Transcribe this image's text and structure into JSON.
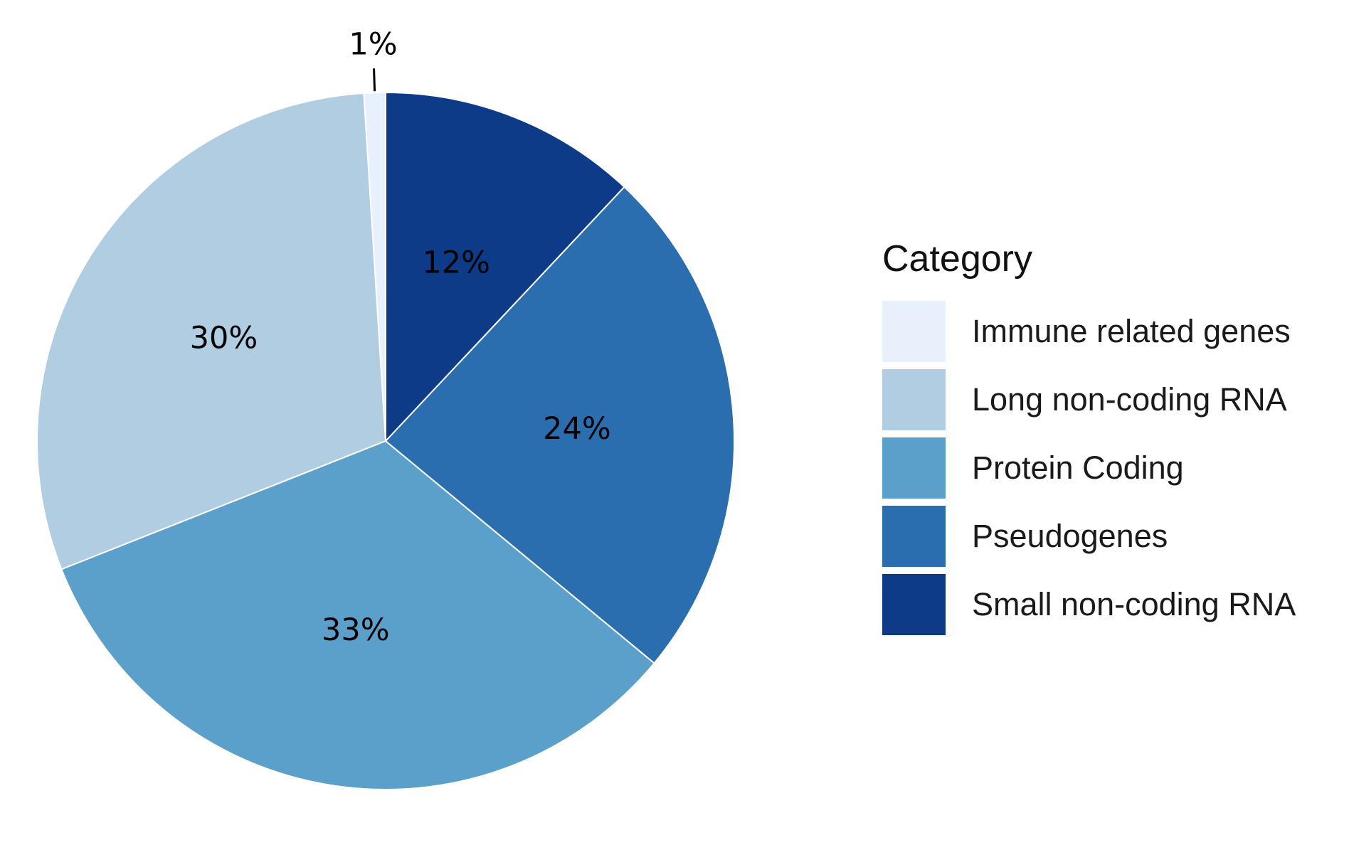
{
  "chart_data": {
    "type": "pie",
    "title": "",
    "categories": [
      "Immune related genes",
      "Long non-coding RNA",
      "Protein Coding",
      "Pseudogenes",
      "Small non-coding RNA"
    ],
    "values": [
      1,
      30,
      33,
      24,
      12
    ],
    "labels": [
      "1%",
      "30%",
      "33%",
      "24%",
      "12%"
    ],
    "colors": [
      "#e8f0fc",
      "#b0cde2",
      "#5b9fcb",
      "#2a6eb0",
      "#0d3b87"
    ],
    "direction": "counterclockwise",
    "start_angle": "12 o'clock",
    "legend": {
      "title": "Category",
      "placement": "right"
    }
  }
}
